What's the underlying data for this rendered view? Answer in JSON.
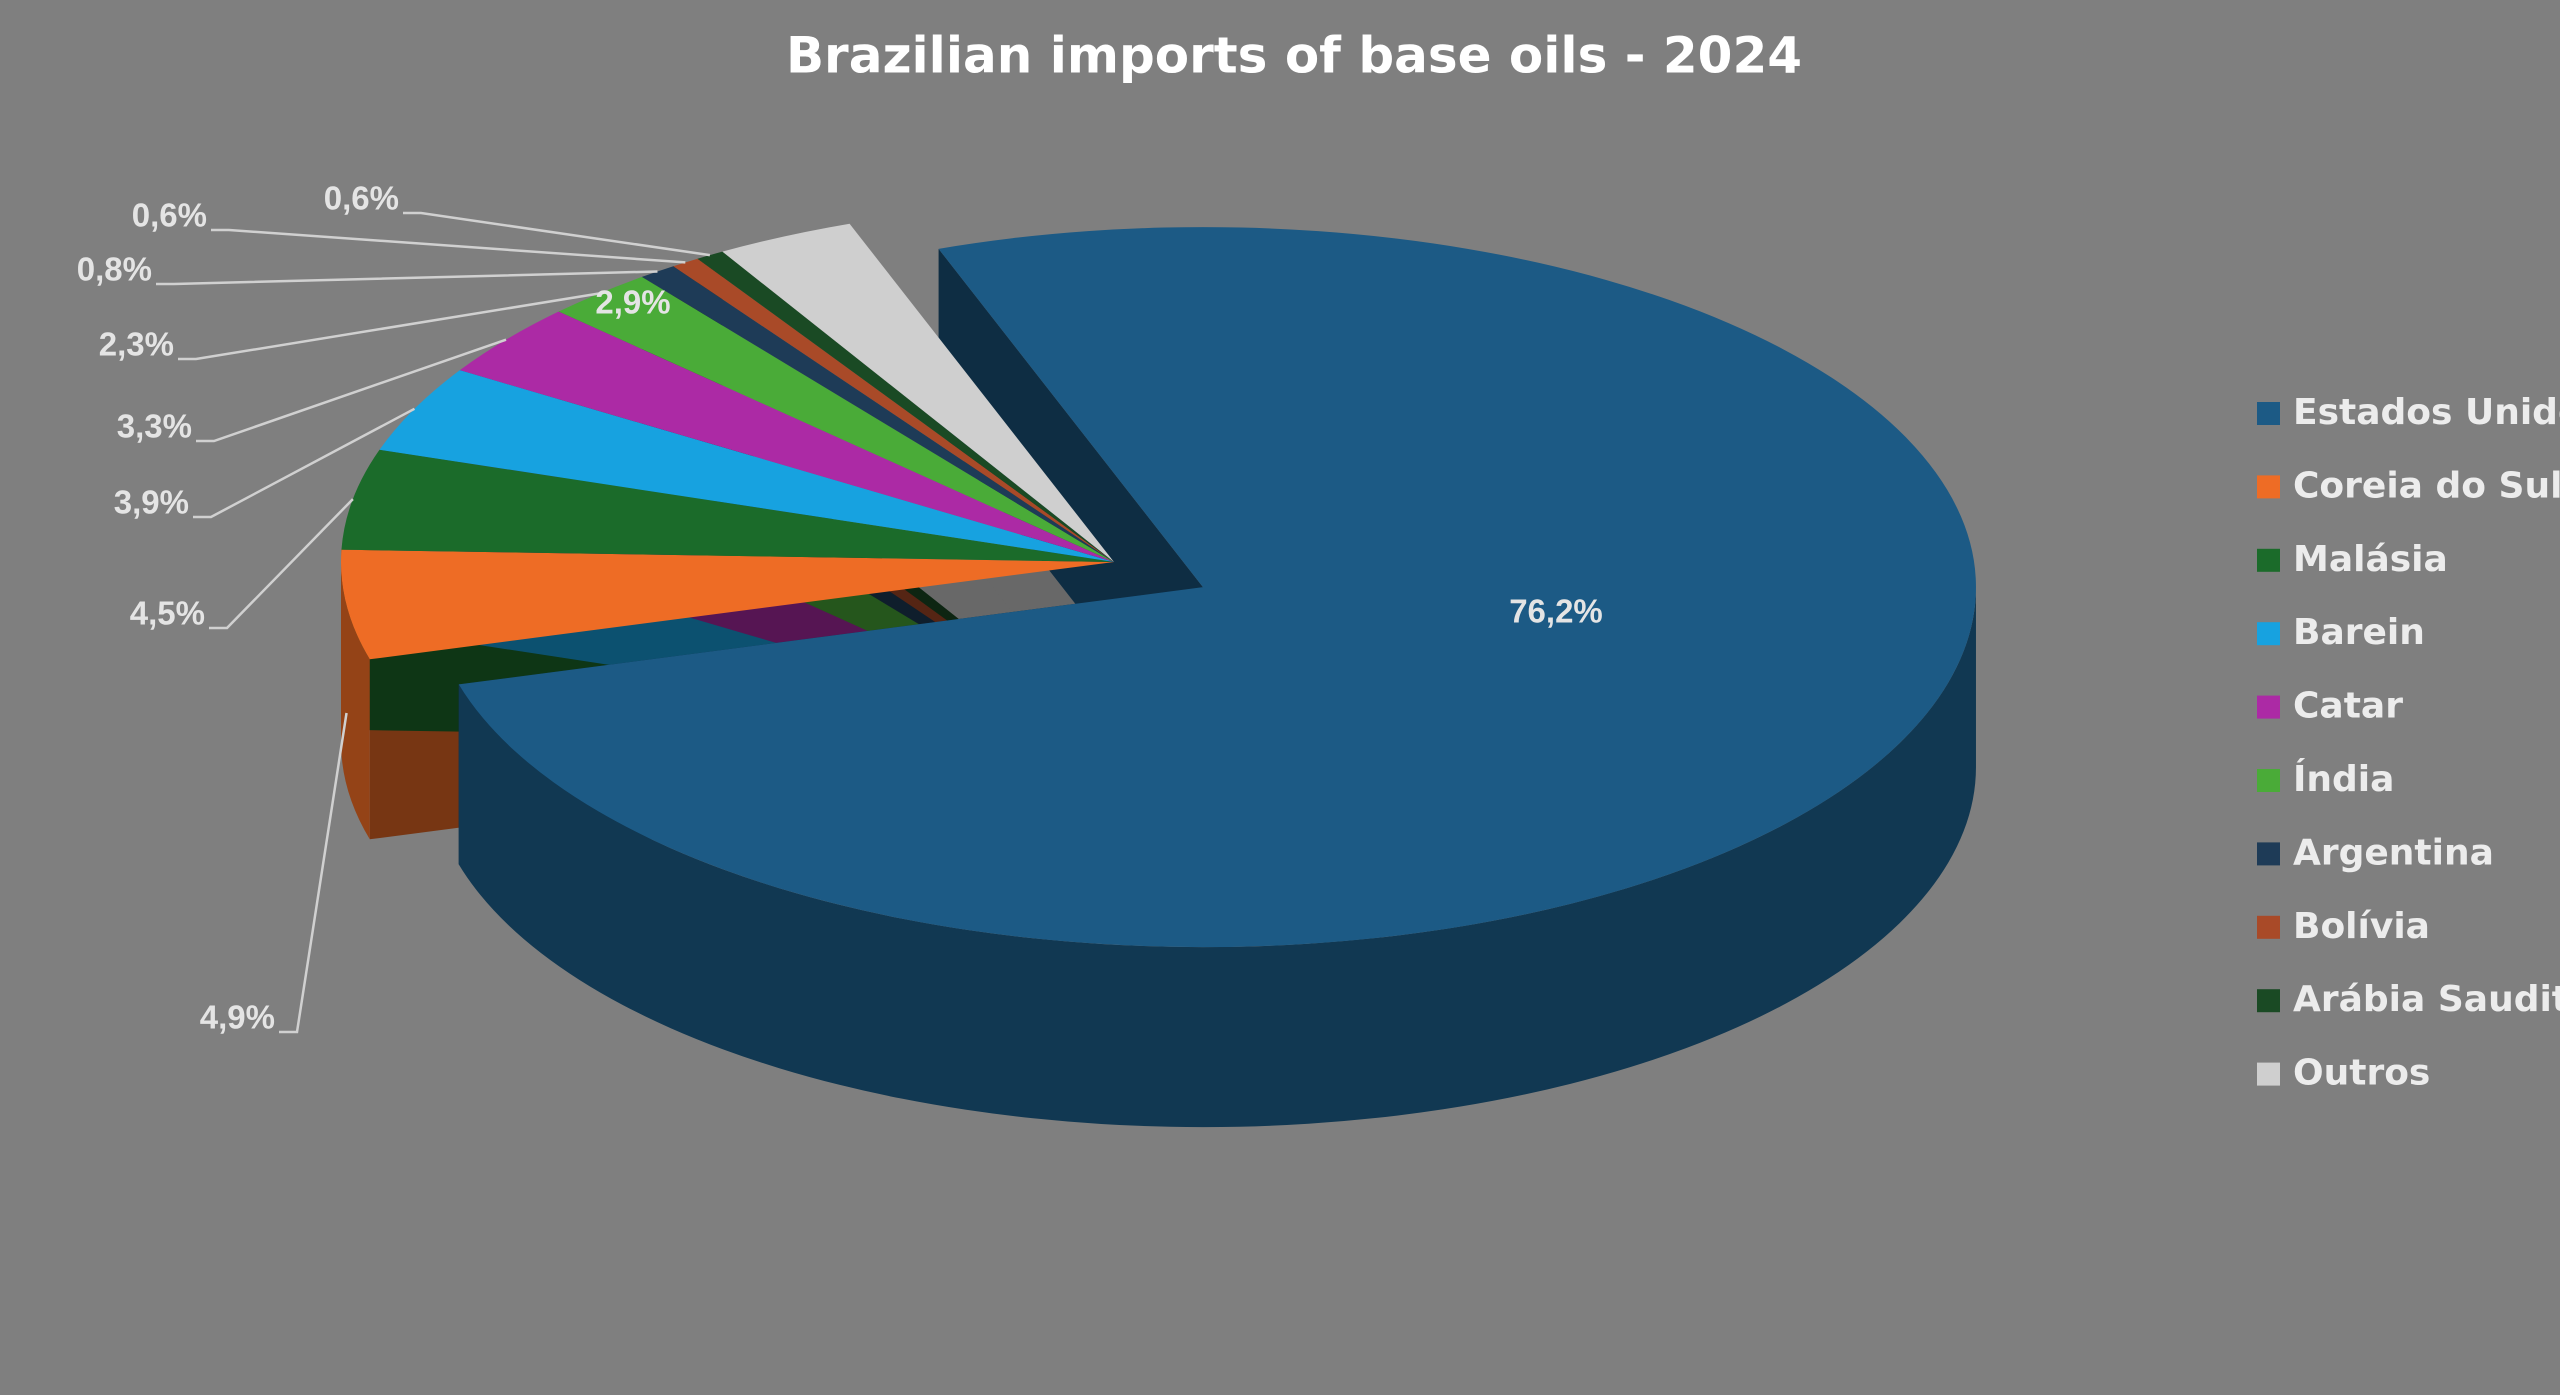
{
  "chart_data": {
    "type": "pie3d",
    "title": "Brazilian imports of base oils - 2024",
    "categories": [
      "Estados Unidos",
      "Coreia do Sul",
      "Malásia",
      "Barein",
      "Catar",
      "Índia",
      "Argentina",
      "Bolívia",
      "Arábia Saudita",
      "Outros"
    ],
    "values": [
      76.2,
      4.9,
      4.5,
      3.9,
      3.3,
      2.3,
      0.8,
      0.6,
      0.6,
      2.9
    ],
    "value_labels": [
      "76,2%",
      "4,9%",
      "4,5%",
      "3,9%",
      "3,3%",
      "2,3%",
      "0,8%",
      "0,6%",
      "0,6%",
      "2,9%"
    ],
    "colors": [
      "#1c5a85",
      "#ee6c25",
      "#1b6b2a",
      "#17a2e0",
      "#ac2aa5",
      "#4aab38",
      "#1e3b57",
      "#a94a28",
      "#1a4a24",
      "#cfcfcf"
    ],
    "legend": "right"
  }
}
